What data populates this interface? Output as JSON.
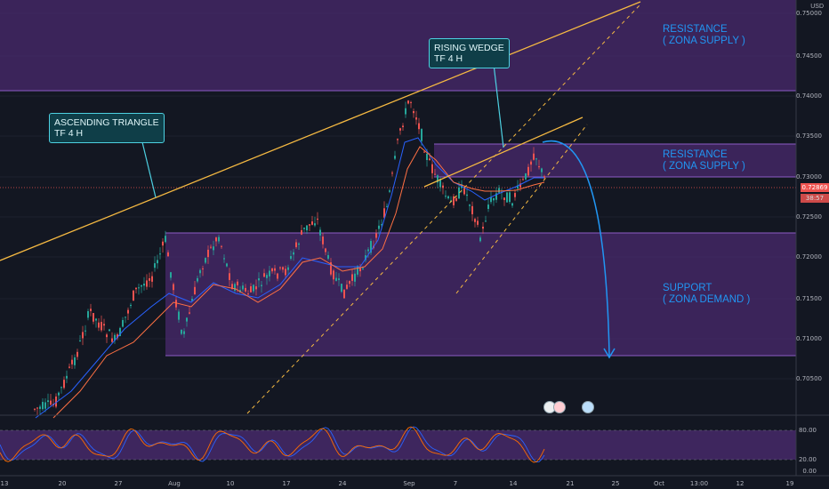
{
  "chart": {
    "currency": "USD",
    "current_price": "0.72869",
    "countdown": "38:57",
    "price_ticks": [
      "0.75000",
      "0.74500",
      "0.74000",
      "0.73500",
      "0.73000",
      "0.72500",
      "0.72000",
      "0.71500",
      "0.71000",
      "0.70500"
    ],
    "osc_ticks": [
      "80.00",
      "20.00",
      "0.00"
    ],
    "time_ticks": [
      "13",
      "20",
      "27",
      "Aug",
      "10",
      "17",
      "24",
      "Sep",
      "7",
      "14",
      "21",
      "25",
      "Oct",
      "13:00",
      "12",
      "19"
    ]
  },
  "annotations": {
    "ascending_triangle": "ASCENDING TRIANGLE\nTF 4 H",
    "rising_wedge": "RISING WEDGE\nTF 4 H",
    "resistance_top": "RESISTANCE\n( ZONA SUPPLY )",
    "resistance_mid": "RESISTANCE\n( ZONA SUPPLY )",
    "support": "SUPPORT\n( ZONA DEMAND )"
  },
  "colors": {
    "background": "#131722",
    "zone_fill": "#4a2a6e",
    "bull": "#26a69a",
    "bear": "#ef5350",
    "trendline": "#f5b942",
    "projection": "#2196f3",
    "callout_border": "#4dd0e1"
  },
  "icons": [
    "economic-event-icon",
    "economic-event-icon",
    "economic-event-icon"
  ]
}
